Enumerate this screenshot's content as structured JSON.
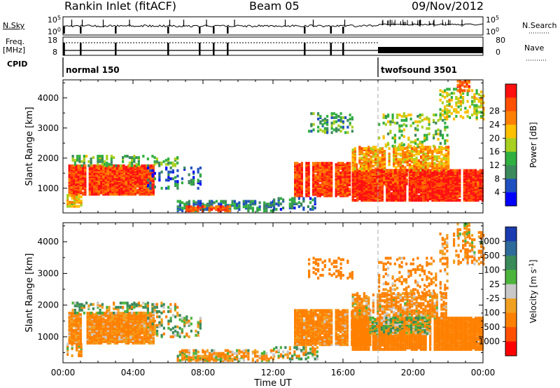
{
  "header": {
    "station": "Rankin Inlet (fitACF)",
    "beam": "Beam 05",
    "date": "09/Nov/2012"
  },
  "strip": {
    "nsky_label": "N.Sky",
    "nsky_ticks": [
      "10^5",
      "10^0"
    ],
    "nsearch_label": "N.Search",
    "nsearch_ticks": [
      "10^5",
      "10^0"
    ],
    "freq_label": "Freq.",
    "freq_unit": "[MHz]",
    "freq_ticks": [
      "18",
      "8"
    ],
    "nave_label": "Nave",
    "nave_ticks": [
      "80",
      "0"
    ],
    "cpid_label": "CPID",
    "modes": [
      {
        "name": "normal 150",
        "start_hour": 0
      },
      {
        "name": "twofsound 3501",
        "start_hour": 18
      }
    ]
  },
  "colors": {
    "power_scale": [
      "#0000ff",
      "#2050c0",
      "#3c8a5c",
      "#30b040",
      "#a8d020",
      "#ffc000",
      "#ff8000",
      "#ff5000",
      "#ff1010"
    ],
    "velocity_scale": [
      "#1a3cb0",
      "#2e6a9a",
      "#3a8a5a",
      "#4cb43c",
      "#c8c8c8",
      "#f0a020",
      "#ff8000",
      "#ff5000",
      "#ff0000"
    ]
  },
  "chart_data": [
    {
      "type": "heatmap",
      "name": "power",
      "xlabel": "",
      "ylabel": "Slant Range [km]",
      "xlim": [
        0,
        24
      ],
      "ylim": [
        180,
        4600
      ],
      "yticks": [
        1000,
        2000,
        3000,
        4000
      ],
      "xticks": [
        0,
        4,
        8,
        12,
        16,
        20,
        24
      ],
      "colorbar_label": "Power [dB]",
      "colorbar_ticks": [
        "4",
        "8",
        "12",
        "16",
        "20",
        "24",
        "28"
      ],
      "colorbar_range": [
        0,
        30
      ]
    },
    {
      "type": "heatmap",
      "name": "velocity",
      "xlabel": "Time UT",
      "ylabel": "Slant Range [km]",
      "xlim": [
        0,
        24
      ],
      "ylim": [
        180,
        4600
      ],
      "yticks": [
        1000,
        2000,
        3000,
        4000
      ],
      "xticks": [
        0,
        4,
        8,
        12,
        16,
        20,
        24
      ],
      "xticklabels": [
        "00:00",
        "04:00",
        "08:00",
        "12:00",
        "16:00",
        "20:00",
        "00:00"
      ],
      "colorbar_label": "Velocity [m s^-1]",
      "colorbar_ticks": [
        "1000",
        "500",
        "100",
        "25",
        "-25",
        "-100",
        "-500",
        "-1000"
      ],
      "mode_change_hour": 18
    }
  ],
  "echo_regions": [
    {
      "t0": 0.3,
      "t1": 5.2,
      "r0": 800,
      "r1": 1750,
      "power": 26,
      "velocity": -200,
      "density": 0.9
    },
    {
      "t0": 0.2,
      "t1": 1.0,
      "r0": 400,
      "r1": 800,
      "power": 18,
      "velocity": -100,
      "density": 0.6
    },
    {
      "t0": 0.5,
      "t1": 6.5,
      "r0": 1750,
      "r1": 2100,
      "power": 12,
      "velocity": 50,
      "density": 0.35
    },
    {
      "t0": 4.8,
      "t1": 8.0,
      "r0": 1000,
      "r1": 1700,
      "power": 6,
      "velocity": 20,
      "density": 0.25
    },
    {
      "t0": 6.5,
      "t1": 12.0,
      "r0": 250,
      "r1": 600,
      "power": 8,
      "velocity": -80,
      "density": 0.5
    },
    {
      "t0": 7.0,
      "t1": 9.5,
      "r0": 250,
      "r1": 400,
      "power": 26,
      "velocity": -100,
      "density": 0.7
    },
    {
      "t0": 13.2,
      "t1": 17.5,
      "r0": 750,
      "r1": 1850,
      "power": 26,
      "velocity": -200,
      "density": 0.9
    },
    {
      "t0": 14.0,
      "t1": 16.5,
      "r0": 2850,
      "r1": 3500,
      "power": 10,
      "velocity": -300,
      "density": 0.25
    },
    {
      "t0": 16.5,
      "t1": 24.0,
      "r0": 600,
      "r1": 1600,
      "power": 28,
      "velocity": -300,
      "density": 0.92
    },
    {
      "t0": 16.5,
      "t1": 22.0,
      "r0": 1600,
      "r1": 2400,
      "power": 20,
      "velocity": -150,
      "density": 0.65
    },
    {
      "t0": 17.5,
      "t1": 21.0,
      "r0": 1100,
      "r1": 1600,
      "power": 26,
      "velocity": 0,
      "density": 0.85
    },
    {
      "t0": 18.0,
      "t1": 22.0,
      "r0": 2400,
      "r1": 3500,
      "power": 14,
      "velocity": -200,
      "density": 0.2
    },
    {
      "t0": 21.5,
      "t1": 24.0,
      "r0": 3300,
      "r1": 4300,
      "power": 16,
      "velocity": -150,
      "density": 0.3
    },
    {
      "t0": 22.5,
      "t1": 23.2,
      "r0": 4200,
      "r1": 4600,
      "power": 24,
      "velocity": -100,
      "density": 0.5
    },
    {
      "t0": 12.0,
      "t1": 14.5,
      "r0": 300,
      "r1": 700,
      "power": 8,
      "velocity": 20,
      "density": 0.4
    }
  ],
  "nsky_spikes": [
    0.5,
    1.1,
    2.3,
    3.8,
    6.1,
    6.9,
    8.2,
    9.8,
    12.7,
    14.3,
    16.1,
    18.7,
    20.4,
    21.2,
    22.8
  ],
  "freq_drops": [
    0.05,
    1.0,
    3.0,
    6.0,
    7.8,
    8.6,
    9.4,
    13.8,
    15.3,
    16.0
  ]
}
